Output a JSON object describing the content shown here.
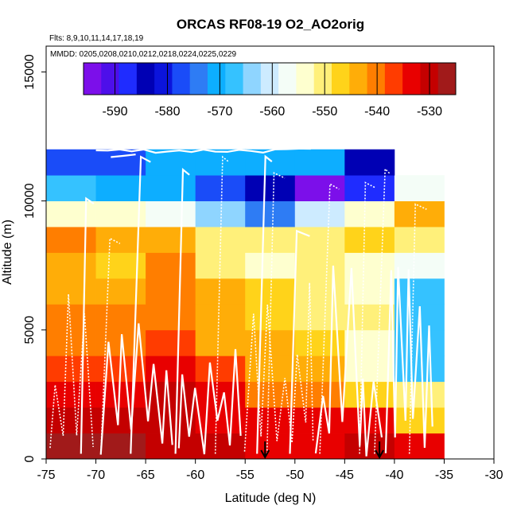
{
  "chart_data": {
    "type": "heatmap",
    "title": "ORCAS RF08-19 O2_AO2orig",
    "subtitle_flights": "Flts: 8,9,10,11,14,17,18,19",
    "subtitle_dates": "MMDD: 0205,0208,0210,0212,0218,0224,0225,0229",
    "xlabel": "Latitude (deg N)",
    "ylabel": "Altitude (m)",
    "xlim": [
      -75,
      -30
    ],
    "ylim": [
      0,
      16000
    ],
    "x_ticks": [
      -75,
      -70,
      -65,
      -60,
      -55,
      -50,
      -45,
      -40,
      -35,
      -30
    ],
    "y_ticks": [
      0,
      5000,
      10000,
      15000
    ],
    "lat_bin_edges": [
      -75,
      -70,
      -65,
      -60,
      -55,
      -50,
      -45,
      -40,
      -35
    ],
    "alt_bin_edges": [
      0,
      1000,
      2000,
      3000,
      4000,
      5000,
      6000,
      7000,
      8000,
      9000,
      10000,
      11000,
      12000
    ],
    "grid_rows_bottom_to_top": [
      [
        -527,
        -527,
        -530,
        -531,
        -532,
        -532,
        -531,
        -532
      ],
      [
        -531,
        -531,
        -530,
        -532,
        -534,
        -534,
        -534,
        -546
      ],
      [
        -535,
        -534,
        -531,
        -535,
        -539,
        -540,
        -548,
        -551
      ],
      [
        -538,
        -536,
        -533,
        -538,
        -543,
        -544,
        -553,
        -566
      ],
      [
        -540,
        -539,
        -538,
        -543,
        -544,
        -546,
        -553,
        -566
      ],
      [
        -541,
        -540,
        -539,
        -544,
        -547,
        -549,
        -552,
        -567
      ],
      [
        -543,
        -543,
        -539,
        -543,
        -546,
        -549,
        -553,
        -567
      ],
      [
        -545,
        -546,
        -541,
        -552,
        -555,
        -551,
        -553,
        -557
      ],
      [
        -541,
        -543,
        -543,
        -552,
        -551,
        -549,
        -547,
        -550
      ],
      [
        -553,
        -554,
        -557,
        -565,
        -574,
        -561,
        -555,
        -545
      ],
      [
        -566,
        -570,
        -571,
        -578,
        -585,
        -593,
        -588,
        -557
      ],
      [
        -578,
        -578,
        -572,
        -572,
        -570,
        -572,
        -584,
        null
      ]
    ],
    "colorbar": {
      "range": [
        -596,
        -525
      ],
      "ticks": [
        -590,
        -580,
        -570,
        -560,
        -550,
        -540,
        -530
      ],
      "tick_labels": [
        "-590",
        "-580",
        "-570",
        "-560",
        "-550",
        "-540",
        "-530"
      ],
      "colors": [
        "#7C0FEA",
        "#4D0FEA",
        "#1F2CFF",
        "#0000B4",
        "#0B14DC",
        "#1A4CF8",
        "#2E7CF4",
        "#0DAEFF",
        "#35C2FF",
        "#8FD5FF",
        "#CDEBFF",
        "#F4FDF7",
        "#FEFFCF",
        "#FFF07A",
        "#FFD31A",
        "#FFAD08",
        "#FF7E00",
        "#FF3C00",
        "#E80000",
        "#C40000",
        "#A11A1A"
      ]
    },
    "arrow_latitudes": [
      -53,
      -41.5
    ],
    "flight_track_color": "#ffffff"
  }
}
